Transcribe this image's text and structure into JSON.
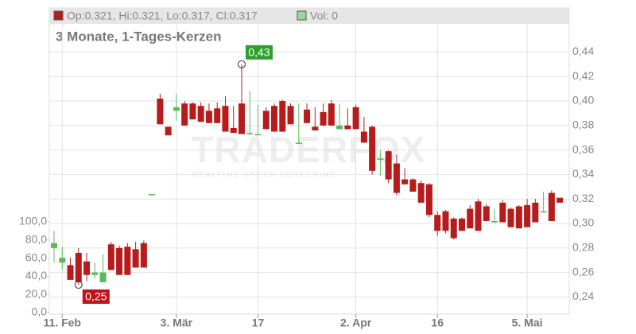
{
  "chart_data": {
    "type": "candlestick",
    "header": {
      "ohlc": "Op:0.321, Hi:0.321, Lo:0.317, Cl:0.317",
      "volume": "Vol: 0"
    },
    "subtitle": "3 Monate, 1-Tages-Kerzen",
    "watermark": {
      "title": "TRADERFOX",
      "subtitle": "REALTIME STOCK SCREENING"
    },
    "categories": [
      null,
      "11. Feb",
      null,
      null,
      null,
      null,
      null,
      null,
      null,
      null,
      null,
      null,
      null,
      null,
      null,
      "3. Mär",
      null,
      null,
      null,
      null,
      null,
      null,
      null,
      null,
      null,
      "17",
      null,
      null,
      null,
      null,
      null,
      null,
      null,
      null,
      null,
      null,
      null,
      "2. Apr",
      null,
      null,
      null,
      null,
      null,
      null,
      null,
      null,
      null,
      "16",
      null,
      null,
      null,
      null,
      null,
      null,
      null,
      null,
      null,
      null,
      "5. Mai",
      null,
      null,
      null,
      null
    ],
    "series": [
      {
        "up_color": "#5cb85c",
        "down_color": "#b71c1c",
        "open": [
          0.28,
          0.268,
          0.266,
          0.276,
          0.269,
          0.258,
          0.252,
          0.283,
          0.28,
          0.281,
          0.279,
          0.284,
          0.324,
          0.402,
          0.379,
          0.392,
          0.398,
          0.398,
          0.396,
          0.392,
          0.394,
          0.396,
          0.378,
          0.398,
          0.373,
          0.372,
          0.392,
          0.396,
          0.4,
          0.396,
          0.365,
          0.393,
          0.379,
          0.391,
          0.398,
          0.377,
          0.38,
          0.395,
          0.375,
          0.379,
          0.352,
          0.359,
          0.349,
          0.336,
          0.336,
          0.333,
          0.332,
          0.307,
          0.31,
          0.304,
          0.304,
          0.312,
          0.318,
          0.314,
          0.301,
          0.317,
          0.312,
          0.314,
          0.315,
          0.317,
          0.309,
          0.325,
          0.321
        ],
        "high": [
          0.294,
          0.281,
          0.272,
          0.28,
          0.276,
          0.268,
          0.275,
          0.285,
          0.282,
          0.284,
          0.285,
          0.286,
          0.324,
          0.406,
          0.379,
          0.406,
          0.4,
          0.399,
          0.399,
          0.398,
          0.399,
          0.404,
          0.396,
          0.43,
          0.408,
          0.397,
          0.395,
          0.398,
          0.401,
          0.398,
          0.398,
          0.398,
          0.395,
          0.398,
          0.401,
          0.398,
          0.394,
          0.397,
          0.387,
          0.38,
          0.36,
          0.36,
          0.356,
          0.345,
          0.337,
          0.335,
          0.333,
          0.31,
          0.311,
          0.305,
          0.305,
          0.315,
          0.32,
          0.316,
          0.312,
          0.319,
          0.313,
          0.315,
          0.32,
          0.32,
          0.326,
          0.327,
          0.321
        ],
        "low": [
          0.268,
          0.262,
          0.254,
          0.25,
          0.253,
          0.255,
          0.252,
          0.262,
          0.258,
          0.258,
          0.264,
          0.264,
          0.324,
          0.381,
          0.372,
          0.384,
          0.38,
          0.385,
          0.383,
          0.382,
          0.382,
          0.375,
          0.374,
          0.373,
          0.372,
          0.372,
          0.377,
          0.375,
          0.375,
          0.381,
          0.365,
          0.382,
          0.376,
          0.38,
          0.38,
          0.377,
          0.377,
          0.377,
          0.366,
          0.34,
          0.339,
          0.333,
          0.323,
          0.332,
          0.326,
          0.317,
          0.305,
          0.29,
          0.292,
          0.287,
          0.294,
          0.296,
          0.294,
          0.302,
          0.3,
          0.301,
          0.297,
          0.296,
          0.297,
          0.301,
          0.309,
          0.302,
          0.317
        ],
        "close": [
          0.284,
          0.272,
          0.254,
          0.252,
          0.258,
          0.26,
          0.26,
          0.262,
          0.258,
          0.258,
          0.264,
          0.264,
          0.324,
          0.381,
          0.372,
          0.395,
          0.38,
          0.385,
          0.383,
          0.382,
          0.382,
          0.375,
          0.374,
          0.373,
          0.374,
          0.373,
          0.377,
          0.375,
          0.375,
          0.381,
          0.366,
          0.382,
          0.376,
          0.38,
          0.38,
          0.38,
          0.377,
          0.377,
          0.366,
          0.343,
          0.353,
          0.336,
          0.325,
          0.332,
          0.326,
          0.317,
          0.307,
          0.294,
          0.294,
          0.288,
          0.294,
          0.296,
          0.294,
          0.302,
          0.302,
          0.301,
          0.297,
          0.296,
          0.297,
          0.301,
          0.31,
          0.302,
          0.317
        ]
      }
    ],
    "annotations": [
      {
        "text": "0,43",
        "value": 0.43,
        "color": "#2e9e2e"
      },
      {
        "text": "0,25",
        "value": 0.25,
        "color": "#c0131b"
      }
    ],
    "ylim": [
      0.226,
      0.463
    ],
    "yticks": [
      {
        "value": 0.24,
        "label": "0,24"
      },
      {
        "value": 0.26,
        "label": "0,26"
      },
      {
        "value": 0.28,
        "label": "0,28"
      },
      {
        "value": 0.3,
        "label": "0,30"
      },
      {
        "value": 0.32,
        "label": "0,32"
      },
      {
        "value": 0.34,
        "label": "0,34"
      },
      {
        "value": 0.36,
        "label": "0,36"
      },
      {
        "value": 0.38,
        "label": "0,38"
      },
      {
        "value": 0.4,
        "label": "0,40"
      },
      {
        "value": 0.42,
        "label": "0,42"
      },
      {
        "value": 0.44,
        "label": "0,44"
      }
    ],
    "y2lim": [
      0,
      100
    ],
    "y2ticks": [
      {
        "value": 0,
        "label": "0,0"
      },
      {
        "value": 20,
        "label": "20,0"
      },
      {
        "value": 40,
        "label": "40,0"
      },
      {
        "value": 60,
        "label": "60,0"
      },
      {
        "value": 80,
        "label": "80,0"
      },
      {
        "value": 100,
        "label": "100,0"
      }
    ],
    "grid": true
  }
}
